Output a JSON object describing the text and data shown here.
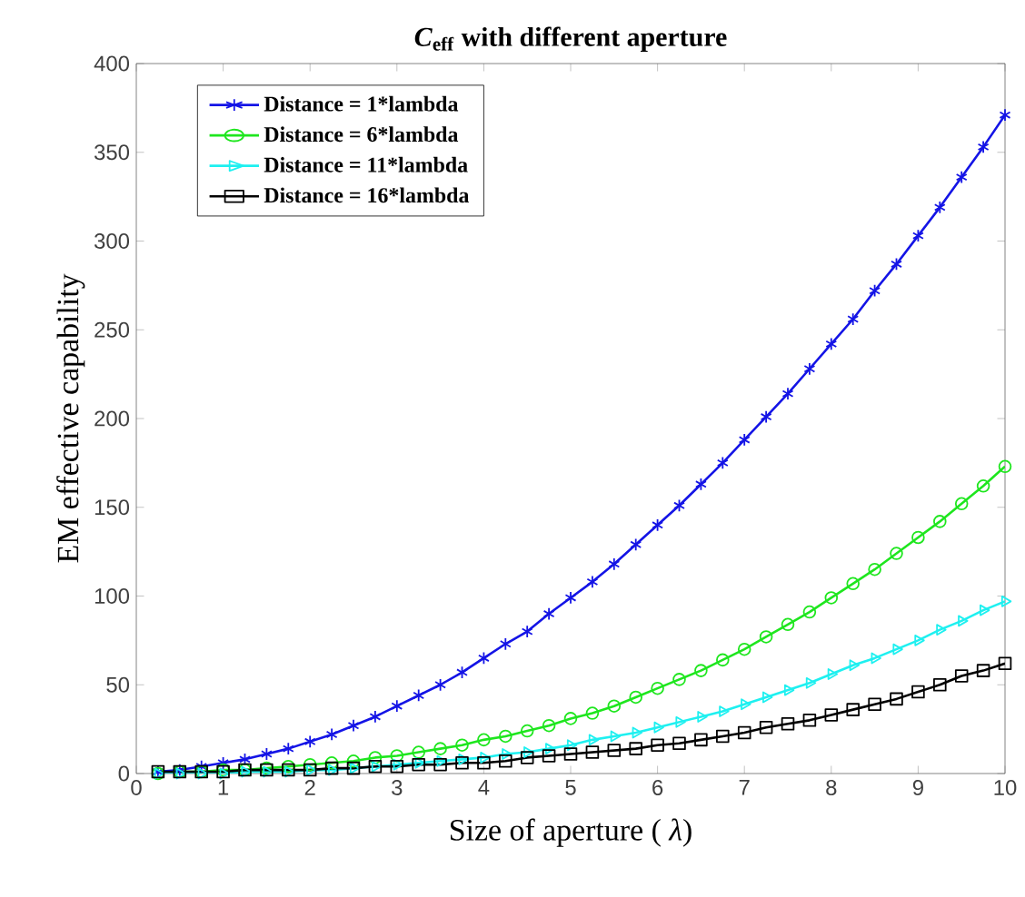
{
  "chart_data": {
    "type": "line",
    "title": "*C*$_{eff}$ with different aperture",
    "xlabel": "Size of aperture ( *λ*)",
    "ylabel": "EM effective capability",
    "x": [
      0.25,
      0.5,
      0.75,
      1,
      1.25,
      1.5,
      1.75,
      2,
      2.25,
      2.5,
      2.75,
      3,
      3.25,
      3.5,
      3.75,
      4,
      4.25,
      4.5,
      4.75,
      5,
      5.25,
      5.5,
      5.75,
      6,
      6.25,
      6.5,
      6.75,
      7,
      7.25,
      7.5,
      7.75,
      8,
      8.25,
      8.5,
      8.75,
      9,
      9.25,
      9.5,
      9.75,
      10
    ],
    "series": [
      {
        "name": "Distance = 1*lambda",
        "color": "#1414e6",
        "marker": "cross",
        "values": [
          1,
          2,
          4,
          6,
          8,
          11,
          14,
          18,
          22,
          27,
          32,
          38,
          44,
          50,
          57,
          65,
          73,
          80,
          90,
          99,
          108,
          118,
          129,
          140,
          151,
          163,
          175,
          188,
          201,
          214,
          228,
          242,
          256,
          272,
          287,
          303,
          319,
          336,
          353,
          371
        ]
      },
      {
        "name": "Distance = 6*lambda",
        "color": "#1ee61e",
        "marker": "circle",
        "values": [
          0,
          1,
          1,
          2,
          2,
          3,
          4,
          5,
          6,
          7,
          9,
          10,
          12,
          14,
          16,
          19,
          21,
          24,
          27,
          31,
          34,
          38,
          43,
          48,
          53,
          58,
          64,
          70,
          77,
          84,
          91,
          99,
          107,
          115,
          124,
          133,
          142,
          152,
          162,
          173
        ]
      },
      {
        "name": "Distance = 11*lambda",
        "color": "#1ef0f0",
        "marker": "triangle",
        "values": [
          0,
          0,
          0,
          0,
          1,
          1,
          1,
          2,
          2,
          3,
          4,
          5,
          6,
          7,
          8,
          9,
          11,
          12,
          14,
          16,
          19,
          21,
          23,
          26,
          29,
          32,
          35,
          39,
          43,
          47,
          51,
          56,
          61,
          65,
          70,
          75,
          81,
          86,
          92,
          97
        ]
      },
      {
        "name": "Distance = 16*lambda",
        "color": "#000000",
        "marker": "square",
        "values": [
          1,
          1,
          1,
          1,
          2,
          2,
          2,
          2,
          3,
          3,
          4,
          4,
          5,
          5,
          6,
          6,
          7,
          9,
          10,
          11,
          12,
          13,
          14,
          16,
          17,
          19,
          21,
          23,
          26,
          28,
          30,
          33,
          36,
          39,
          42,
          46,
          50,
          55,
          58,
          62
        ]
      }
    ],
    "xlim": [
      0,
      10
    ],
    "xticks": [
      0,
      1,
      2,
      3,
      4,
      5,
      6,
      7,
      8,
      9,
      10
    ],
    "ylim": [
      0,
      400
    ],
    "yticks": [
      0,
      50,
      100,
      150,
      200,
      250,
      300,
      350,
      400
    ],
    "legend": "top left",
    "grid": false,
    "line_style": "solid"
  }
}
